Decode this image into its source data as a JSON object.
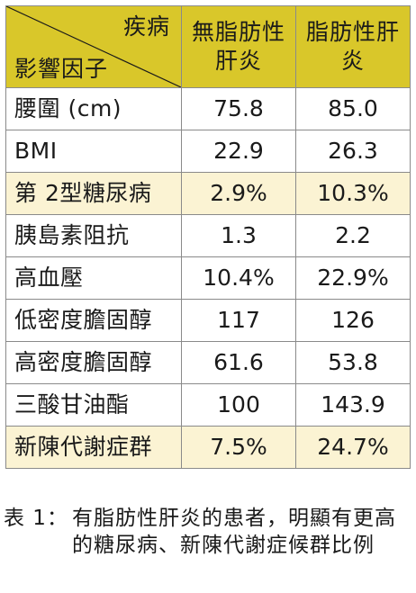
{
  "table": {
    "header": {
      "diag_top": "疾病",
      "diag_bottom": "影響因子",
      "col_a": "無脂肪性肝炎",
      "col_b": "脂肪性肝炎"
    },
    "rows": [
      {
        "factor": "腰圍 (cm)",
        "a": "75.8",
        "b": "85.0",
        "highlight": false
      },
      {
        "factor": "BMI",
        "a": "22.9",
        "b": "26.3",
        "highlight": false
      },
      {
        "factor": "第 2型糖尿病",
        "a": "2.9%",
        "b": "10.3%",
        "highlight": true
      },
      {
        "factor": "胰島素阻抗",
        "a": "1.3",
        "b": "2.2",
        "highlight": false
      },
      {
        "factor": "高血壓",
        "a": "10.4%",
        "b": "22.9%",
        "highlight": false
      },
      {
        "factor": "低密度膽固醇",
        "a": "117",
        "b": "126",
        "highlight": false
      },
      {
        "factor": "高密度膽固醇",
        "a": "61.6",
        "b": "53.8",
        "highlight": false
      },
      {
        "factor": "三酸甘油酯",
        "a": "100",
        "b": "143.9",
        "highlight": false
      },
      {
        "factor": "新陳代謝症群",
        "a": "7.5%",
        "b": "24.7%",
        "highlight": true
      }
    ]
  },
  "caption": {
    "label": "表 1：",
    "text": "有脂肪性肝炎的患者，明顯有更高的糖尿病、新陳代謝症候群比例"
  },
  "colors": {
    "header_bg": "#d9c72a",
    "highlight_bg": "#fbf3d3",
    "border": "#8a8a8a"
  }
}
